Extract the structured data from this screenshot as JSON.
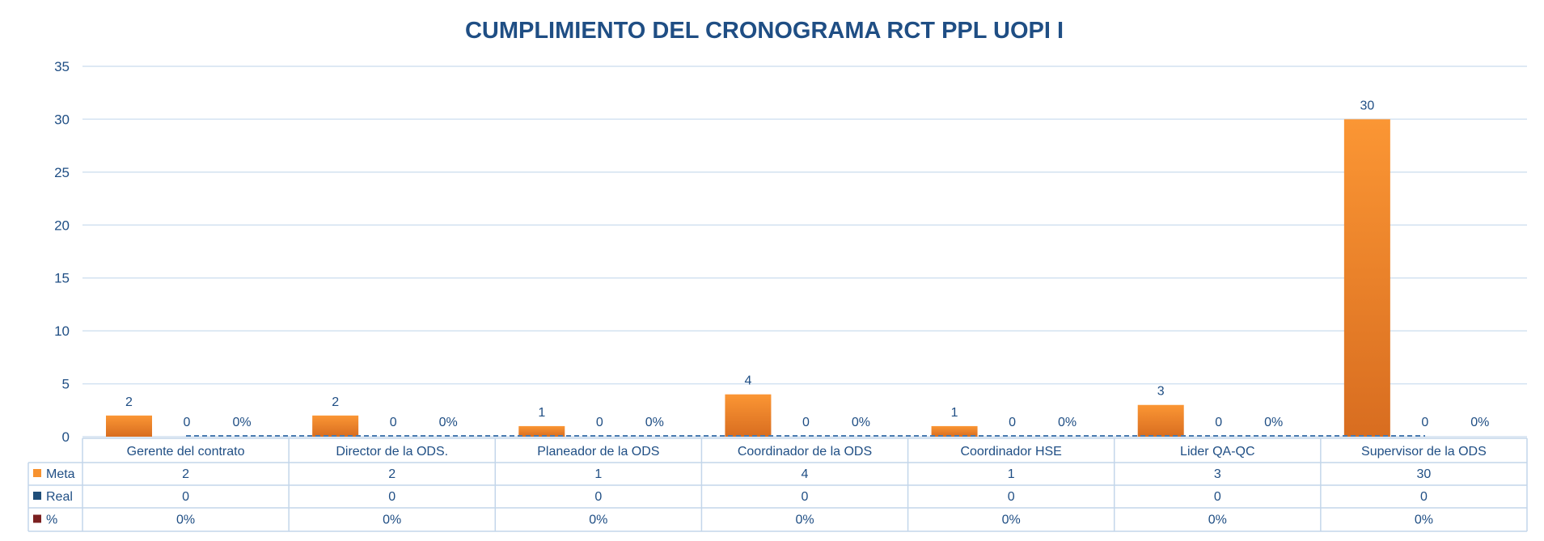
{
  "chart_data": {
    "type": "bar",
    "title": "CUMPLIMIENTO DEL CRONOGRAMA RCT PPL UOPI I",
    "categories": [
      "Gerente del contrato",
      "Director de la ODS.",
      "Planeador de la ODS",
      "Coordinador de la ODS",
      "Coordinador HSE",
      "Lider QA-QC",
      "Supervisor de la ODS"
    ],
    "ylim": [
      0,
      35
    ],
    "yticks": [
      0,
      5,
      10,
      15,
      20,
      25,
      30,
      35
    ],
    "grid": true,
    "legend": "data-table",
    "series": [
      {
        "name": "Meta",
        "values": [
          2,
          2,
          1,
          4,
          1,
          3,
          30
        ],
        "color": "#f7922f",
        "labels": [
          "2",
          "2",
          "1",
          "4",
          "1",
          "3",
          "30"
        ]
      },
      {
        "name": "Real",
        "values": [
          0,
          0,
          0,
          0,
          0,
          0,
          0
        ],
        "color": "#1f4e79",
        "labels": [
          "0",
          "0",
          "0",
          "0",
          "0",
          "0",
          "0"
        ]
      },
      {
        "name": "%",
        "values": [
          0,
          0,
          0,
          0,
          0,
          0,
          0
        ],
        "color": "#7b2020",
        "labels": [
          "0%",
          "0%",
          "0%",
          "0%",
          "0%",
          "0%",
          "0%"
        ]
      }
    ]
  }
}
